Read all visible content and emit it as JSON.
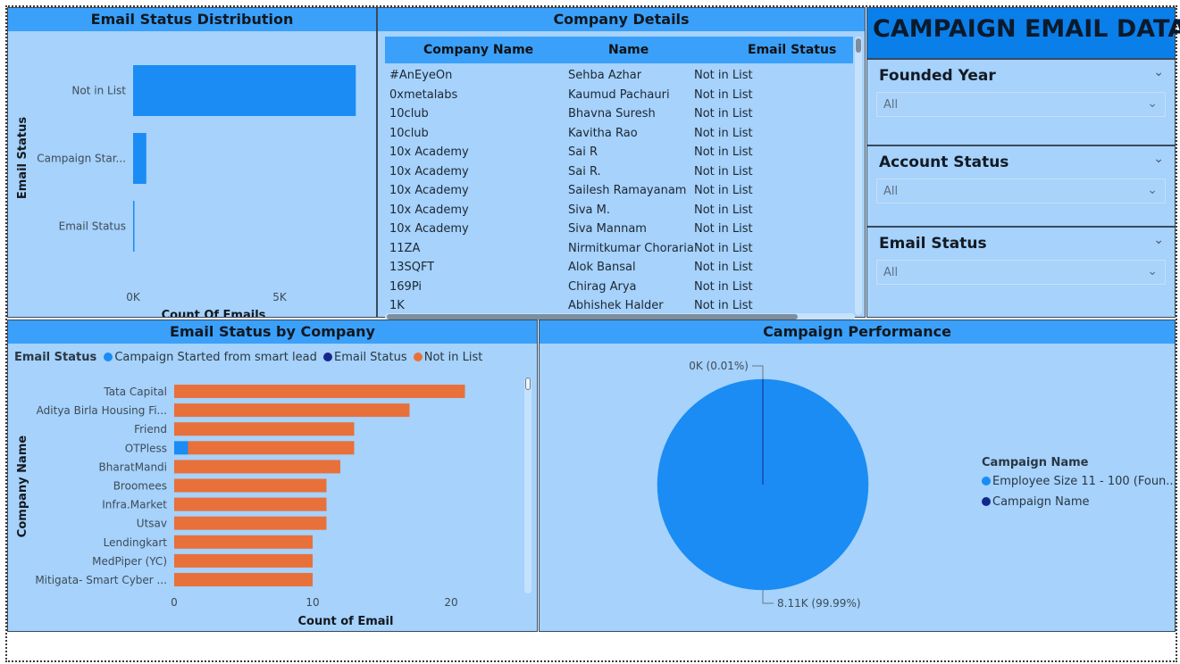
{
  "header": {
    "title": "CAMPAIGN EMAIL DATA"
  },
  "panels": {
    "distribution_title": "Email Status Distribution",
    "company_details_title": "Company Details",
    "by_company_title": "Email Status by Company",
    "performance_title": "Campaign Performance"
  },
  "colors": {
    "panel_bg": "#a6d2fb",
    "title_bg": "#3aa0fa",
    "header_bg": "#0a7fea",
    "blue": "#1a8cf4",
    "navy": "#14288c",
    "orange": "#e8703a"
  },
  "table": {
    "columns": [
      "Company Name",
      "Name",
      "Email Status"
    ],
    "rows": [
      [
        "#AnEyeOn",
        "Sehba Azhar",
        "Not in List"
      ],
      [
        "0xmetalabs",
        "Kaumud Pachauri",
        "Not in List"
      ],
      [
        "10club",
        "Bhavna Suresh",
        "Not in List"
      ],
      [
        "10club",
        "Kavitha Rao",
        "Not in List"
      ],
      [
        "10x Academy",
        "Sai R",
        "Not in List"
      ],
      [
        "10x Academy",
        "Sai R.",
        "Not in List"
      ],
      [
        "10x Academy",
        "Sailesh Ramayanam",
        "Not in List"
      ],
      [
        "10x Academy",
        "Siva M.",
        "Not in List"
      ],
      [
        "10x Academy",
        "Siva Mannam",
        "Not in List"
      ],
      [
        "11ZA",
        "Nirmitkumar Choraria",
        "Not in List"
      ],
      [
        "13SQFT",
        "Alok Bansal",
        "Not in List"
      ],
      [
        "169Pi",
        "Chirag Arya",
        "Not in List"
      ],
      [
        "1K",
        "Abhishek Halder",
        "Not in List"
      ]
    ]
  },
  "slicers": [
    {
      "title": "Founded Year",
      "value": "All"
    },
    {
      "title": "Account Status",
      "value": "All"
    },
    {
      "title": "Email Status",
      "value": "All"
    }
  ],
  "chart_data": [
    {
      "type": "bar",
      "orientation": "horizontal",
      "title": "Email Status Distribution",
      "xlabel": "Count Of Emails",
      "ylabel": "Email Status",
      "categories": [
        "Not in List",
        "Campaign Star...",
        "Email Status"
      ],
      "values": [
        7600,
        450,
        40
      ],
      "x_ticks": [
        "0K",
        "5K"
      ],
      "xlim": [
        0,
        8000
      ]
    },
    {
      "type": "bar",
      "orientation": "horizontal",
      "stacked": true,
      "title": "Email Status by Company",
      "xlabel": "Count of Email",
      "ylabel": "Company Name",
      "legend_title": "Email Status",
      "legend_position": "top-left",
      "categories": [
        "Tata Capital",
        "Aditya Birla Housing Fi...",
        "Friend",
        "OTPless",
        "BharatMandi",
        "Broomees",
        "Infra.Market",
        "Utsav",
        "Lendingkart",
        "MedPiper (YC)",
        "Mitigata- Smart Cyber ..."
      ],
      "series": [
        {
          "name": "Campaign Started from smart lead",
          "color": "#1a8cf4",
          "values": [
            0,
            0,
            0,
            1,
            0,
            0,
            0,
            0,
            0,
            0,
            0
          ]
        },
        {
          "name": "Email Status",
          "color": "#14288c",
          "values": [
            0,
            0,
            0,
            0,
            0,
            0,
            0,
            0,
            0,
            0,
            0
          ]
        },
        {
          "name": "Not in List",
          "color": "#e8703a",
          "values": [
            21,
            17,
            13,
            12,
            12,
            11,
            11,
            11,
            10,
            10,
            10
          ]
        }
      ],
      "x_ticks": [
        0,
        10,
        20
      ],
      "xlim": [
        0,
        25
      ]
    },
    {
      "type": "pie",
      "title": "Campaign Performance",
      "legend_title": "Campaign Name",
      "legend_position": "right",
      "slices": [
        {
          "label": "Employee Size 11 - 100 (Foun...",
          "value": 8110,
          "color": "#1a8cf4",
          "data_label": "8.11K (99.99%)"
        },
        {
          "label": "Campaign Name",
          "value": 1,
          "color": "#14288c",
          "data_label": "0K (0.01%)"
        }
      ]
    }
  ]
}
